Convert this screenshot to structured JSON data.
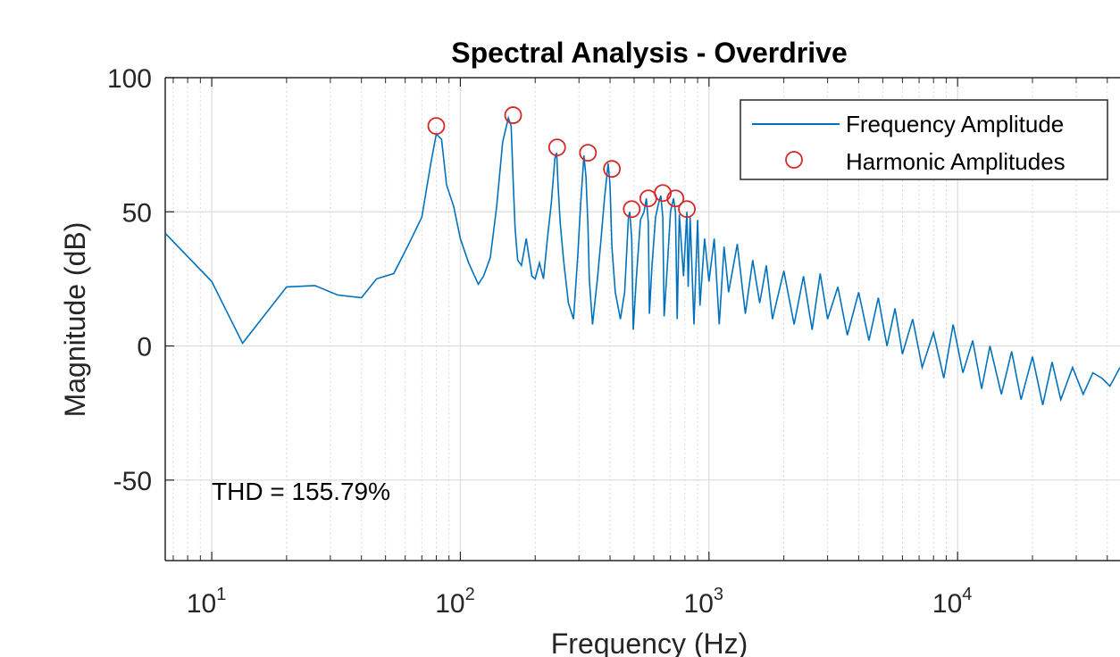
{
  "chart_data": {
    "type": "line",
    "title": "Spectral Analysis - Overdrive",
    "xlabel": "Frequency (Hz)",
    "ylabel": "Magnitude (dB)",
    "x_scale": "log",
    "xlim": [
      6.5,
      45000
    ],
    "ylim": [
      -80,
      100
    ],
    "x_ticks": [
      {
        "value": 10,
        "base": "10",
        "exp": "1"
      },
      {
        "value": 100,
        "base": "10",
        "exp": "2"
      },
      {
        "value": 1000,
        "base": "10",
        "exp": "3"
      },
      {
        "value": 10000,
        "base": "10",
        "exp": "4"
      }
    ],
    "y_ticks": [
      {
        "value": 100,
        "label": "100"
      },
      {
        "value": 50,
        "label": "50"
      },
      {
        "value": 0,
        "label": "0"
      },
      {
        "value": -50,
        "label": "-50"
      }
    ],
    "grid": true,
    "minor_grid": true,
    "legend_position": "top-right",
    "annotation": "THD = 155.79%",
    "series": [
      {
        "name": "Frequency Amplitude",
        "style": "line",
        "color": "#0072BD",
        "x": [
          6.5,
          10,
          13.3,
          20,
          26,
          32,
          40,
          46,
          54,
          62,
          70,
          76,
          80,
          84,
          88,
          94,
          100,
          108,
          118,
          124,
          132,
          140,
          148,
          156,
          160,
          163,
          166,
          170,
          176,
          184,
          194,
          200,
          208,
          216,
          224,
          232,
          240,
          244,
          247,
          252,
          260,
          272,
          285,
          296,
          305,
          314,
          320,
          326,
          330,
          340,
          356,
          368,
          380,
          393,
          400,
          407,
          420,
          440,
          458,
          474,
          480,
          489,
          496,
          510,
          530,
          548,
          560,
          570,
          576,
          590,
          610,
          630,
          640,
          652,
          660,
          680,
          700,
          720,
          733,
          745,
          760,
          790,
          815,
          825,
          840,
          870,
          900,
          920,
          960,
          1000,
          1050,
          1100,
          1150,
          1200,
          1300,
          1400,
          1500,
          1600,
          1700,
          1800,
          2000,
          2200,
          2400,
          2600,
          2800,
          3000,
          3300,
          3600,
          4000,
          4400,
          4800,
          5200,
          5600,
          6000,
          6600,
          7200,
          8000,
          8800,
          9600,
          10500,
          11500,
          12500,
          13500,
          15000,
          16500,
          18000,
          20000,
          22000,
          24000,
          26000,
          29000,
          32000,
          35000,
          38000,
          41000,
          45000
        ],
        "y": [
          42,
          24,
          1,
          22,
          22.5,
          19,
          18,
          25,
          27,
          38,
          48,
          68,
          79,
          77,
          60,
          52,
          40,
          31,
          23,
          26,
          33,
          52,
          76,
          85,
          82,
          62,
          44,
          32,
          30,
          40,
          26,
          25,
          31,
          25,
          40,
          53,
          70,
          72,
          60,
          46,
          32,
          16,
          10,
          32,
          54,
          71,
          63,
          45,
          25,
          8,
          25,
          40,
          55,
          68,
          60,
          37,
          20,
          10,
          20,
          48,
          50,
          40,
          6,
          25,
          47,
          50,
          55,
          46,
          12,
          30,
          48,
          54,
          56,
          48,
          11,
          30,
          50,
          55,
          50,
          10,
          49,
          26,
          50,
          22,
          48,
          8,
          47,
          15,
          40,
          24,
          40,
          8,
          37,
          20,
          38,
          12,
          32,
          16,
          30,
          10,
          28,
          8,
          26,
          6,
          27,
          10,
          22,
          4,
          20,
          2,
          18,
          0,
          14,
          -3,
          10,
          -8,
          5,
          -12,
          8,
          -10,
          2,
          -16,
          0,
          -18,
          -2,
          -20,
          -4,
          -22,
          -6,
          -20,
          -8,
          -18,
          -10,
          -12,
          -15,
          -8
        ]
      },
      {
        "name": "Harmonic Amplitudes",
        "style": "markers",
        "color": "#D62728",
        "x": [
          80,
          163,
          245,
          326,
          407,
          489,
          570,
          652,
          733,
          815
        ],
        "y": [
          82,
          86,
          74,
          72,
          66,
          51,
          55,
          57,
          55,
          51
        ]
      }
    ]
  }
}
